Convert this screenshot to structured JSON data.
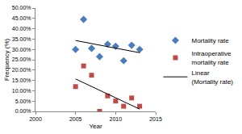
{
  "chart_data": {
    "type": "scatter",
    "x_title": "Year",
    "y_title": "Frequency (%)",
    "xlim": [
      2000,
      2015
    ],
    "xticks": [
      2000,
      2005,
      2010,
      2015
    ],
    "ylim": [
      0,
      50
    ],
    "yticks": [
      {
        "value": 0,
        "label": "0.00%"
      },
      {
        "value": 5,
        "label": "5.00%"
      },
      {
        "value": 10,
        "label": "10.00%"
      },
      {
        "value": 15,
        "label": "15.00%"
      },
      {
        "value": 20,
        "label": "20.00%"
      },
      {
        "value": 25,
        "label": "25.00%"
      },
      {
        "value": 30,
        "label": "30.00%"
      },
      {
        "value": 35,
        "label": "35.00%"
      },
      {
        "value": 40,
        "label": "40.00%"
      },
      {
        "value": 45,
        "label": "45.00%"
      },
      {
        "value": 50,
        "label": "50.00%"
      }
    ],
    "grid": false,
    "legend": "right",
    "series": [
      {
        "name": "Mortality rate",
        "type": "scatter",
        "marker": "diamond",
        "color": "#4a7ebb",
        "x": [
          2005,
          2006,
          2007,
          2008,
          2009,
          2010,
          2011,
          2012,
          2013
        ],
        "values": [
          30,
          44.5,
          30.5,
          26.5,
          32.5,
          31.5,
          24.5,
          32,
          30
        ]
      },
      {
        "name": "Intraoperative mortality rate",
        "type": "scatter",
        "marker": "square",
        "color": "#be4b48",
        "x": [
          2005,
          2006,
          2007,
          2008,
          2009,
          2010,
          2011,
          2012,
          2013
        ],
        "values": [
          12,
          22,
          17.5,
          0,
          7.5,
          5,
          2.5,
          6.5,
          2.5
        ]
      },
      {
        "name": "Linear (Mortality rate)",
        "type": "line",
        "line_style": "solid",
        "color": "#000000",
        "x": [
          2005,
          2013
        ],
        "values": [
          34.3,
          28.4
        ]
      },
      {
        "type": "line",
        "line_style": "solid",
        "color": "#000000",
        "x": [
          2005,
          2013
        ],
        "values": [
          15.7,
          1.1
        ]
      }
    ]
  }
}
